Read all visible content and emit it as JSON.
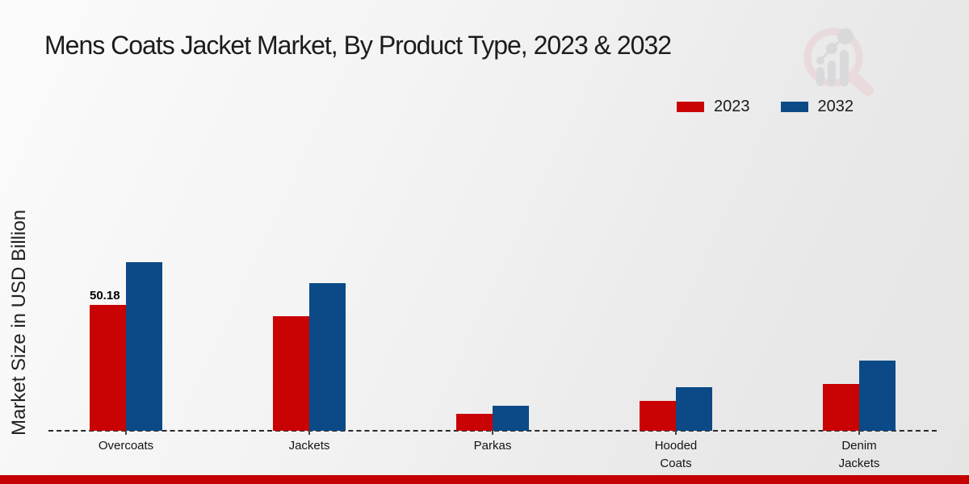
{
  "title": "Mens Coats Jacket Market, By Product Type, 2023 & 2032",
  "ylabel": "Market Size in USD Billion",
  "colors": {
    "series_2023": "#c90303",
    "series_2032": "#0b4a87",
    "footer_accent": "#c40000",
    "axis": "#2b2b2b",
    "text": "#1c1c1c"
  },
  "legend": {
    "position": "top-right",
    "items": [
      {
        "label": "2023",
        "color": "#c90303"
      },
      {
        "label": "2032",
        "color": "#0b4a87"
      }
    ]
  },
  "chart_data": {
    "type": "bar",
    "title": "Mens Coats Jacket Market, By Product Type, 2023 & 2032",
    "xlabel": "",
    "ylabel": "Market Size in USD Billion",
    "categories": [
      "Overcoats",
      "Jackets",
      "Parkas",
      "Hooded Coats",
      "Denim Jackets"
    ],
    "series": [
      {
        "name": "2023",
        "color": "#c90303",
        "values": [
          50.18,
          45.7,
          6.7,
          11.8,
          18.6
        ]
      },
      {
        "name": "2032",
        "color": "#0b4a87",
        "values": [
          67.2,
          58.9,
          9.9,
          17.4,
          27.9
        ]
      }
    ],
    "bar_labels": [
      {
        "category": "Overcoats",
        "series": "2023",
        "text": "50.18"
      }
    ],
    "ylim": [
      0,
      70
    ],
    "grid": false,
    "baseline_style": "dashed",
    "legend_position": "top-right"
  },
  "watermark": {
    "name": "market-research-future-logo"
  }
}
